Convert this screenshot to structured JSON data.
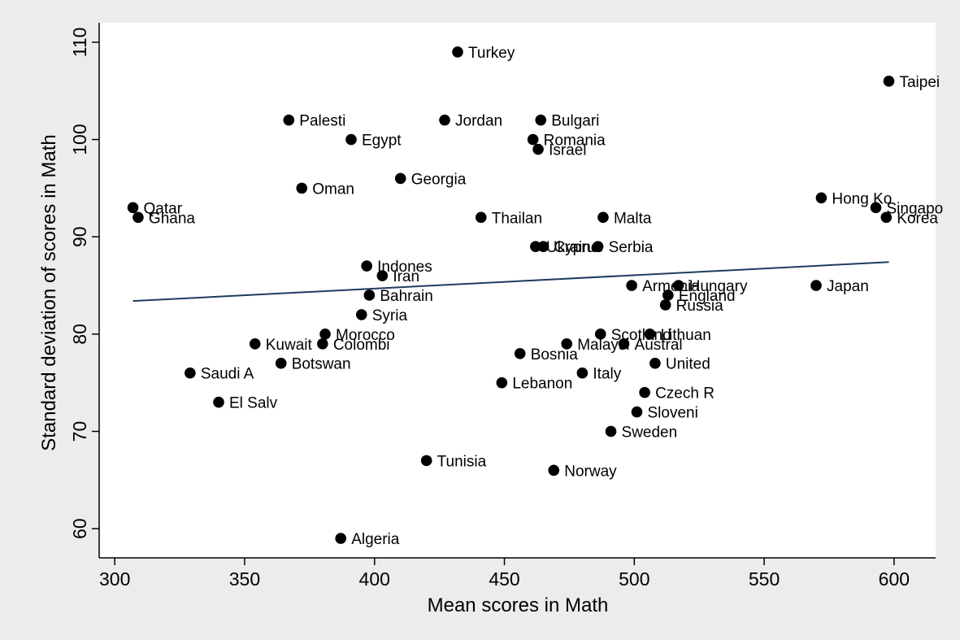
{
  "chart_data": {
    "type": "scatter",
    "xlabel": "Mean scores in Math",
    "ylabel": "Standard deviation of scores in Math",
    "xlim": [
      294,
      616
    ],
    "ylim": [
      57,
      112
    ],
    "xticks": [
      300,
      350,
      400,
      450,
      500,
      550,
      600
    ],
    "yticks": [
      60,
      70,
      80,
      90,
      100,
      110
    ],
    "grid": false,
    "legend": "none",
    "colors": {
      "outer_background": "#ececec",
      "plot_background": "#ffffff",
      "marker": "#000000",
      "fit_line": "#1f3b63"
    },
    "fit_line": {
      "x": [
        307,
        598
      ],
      "y": [
        83.4,
        87.4
      ]
    },
    "points": [
      {
        "label": "Turkey",
        "x": 432,
        "y": 109
      },
      {
        "label": "Taipei",
        "x": 598,
        "y": 106
      },
      {
        "label": "Palesti",
        "x": 367,
        "y": 102
      },
      {
        "label": "Jordan",
        "x": 427,
        "y": 102
      },
      {
        "label": "Bulgari",
        "x": 464,
        "y": 102
      },
      {
        "label": "Egypt",
        "x": 391,
        "y": 100
      },
      {
        "label": "Romania",
        "x": 461,
        "y": 100
      },
      {
        "label": "Israel",
        "x": 463,
        "y": 99
      },
      {
        "label": "Georgia",
        "x": 410,
        "y": 96
      },
      {
        "label": "Oman",
        "x": 372,
        "y": 95
      },
      {
        "label": "Hong Ko",
        "x": 572,
        "y": 94
      },
      {
        "label": "Qatar",
        "x": 307,
        "y": 93
      },
      {
        "label": "Singapo",
        "x": 593,
        "y": 93
      },
      {
        "label": "Ghana",
        "x": 309,
        "y": 92
      },
      {
        "label": "Thailan",
        "x": 441,
        "y": 92
      },
      {
        "label": "Malta",
        "x": 488,
        "y": 92
      },
      {
        "label": "Korea",
        "x": 597,
        "y": 92
      },
      {
        "label": "Ukraine",
        "x": 462,
        "y": 89
      },
      {
        "label": "Cyprus",
        "x": 465,
        "y": 89
      },
      {
        "label": "Serbia",
        "x": 486,
        "y": 89
      },
      {
        "label": "Indones",
        "x": 397,
        "y": 87
      },
      {
        "label": "Iran",
        "x": 403,
        "y": 86
      },
      {
        "label": "Armenia",
        "x": 499,
        "y": 85
      },
      {
        "label": "Hungary",
        "x": 517,
        "y": 85
      },
      {
        "label": "Japan",
        "x": 570,
        "y": 85
      },
      {
        "label": "Bahrain",
        "x": 398,
        "y": 84
      },
      {
        "label": "England",
        "x": 513,
        "y": 84
      },
      {
        "label": "Russia",
        "x": 512,
        "y": 83
      },
      {
        "label": "Syria",
        "x": 395,
        "y": 82
      },
      {
        "label": "Morocco",
        "x": 381,
        "y": 80
      },
      {
        "label": "Scotland",
        "x": 487,
        "y": 80
      },
      {
        "label": "Lithuan",
        "x": 506,
        "y": 80
      },
      {
        "label": "Kuwait",
        "x": 354,
        "y": 79
      },
      {
        "label": "Colombi",
        "x": 380,
        "y": 79
      },
      {
        "label": "Malaysi",
        "x": 474,
        "y": 79
      },
      {
        "label": "Austral",
        "x": 496,
        "y": 79
      },
      {
        "label": "Bosnia",
        "x": 456,
        "y": 78
      },
      {
        "label": "Botswan",
        "x": 364,
        "y": 77
      },
      {
        "label": "United",
        "x": 508,
        "y": 77
      },
      {
        "label": "Saudi A",
        "x": 329,
        "y": 76
      },
      {
        "label": "Italy",
        "x": 480,
        "y": 76
      },
      {
        "label": "Lebanon",
        "x": 449,
        "y": 75
      },
      {
        "label": "Czech R",
        "x": 504,
        "y": 74
      },
      {
        "label": "El Salv",
        "x": 340,
        "y": 73
      },
      {
        "label": "Sloveni",
        "x": 501,
        "y": 72
      },
      {
        "label": "Sweden",
        "x": 491,
        "y": 70
      },
      {
        "label": "Tunisia",
        "x": 420,
        "y": 67
      },
      {
        "label": "Norway",
        "x": 469,
        "y": 66
      },
      {
        "label": "Algeria",
        "x": 387,
        "y": 59
      }
    ]
  }
}
